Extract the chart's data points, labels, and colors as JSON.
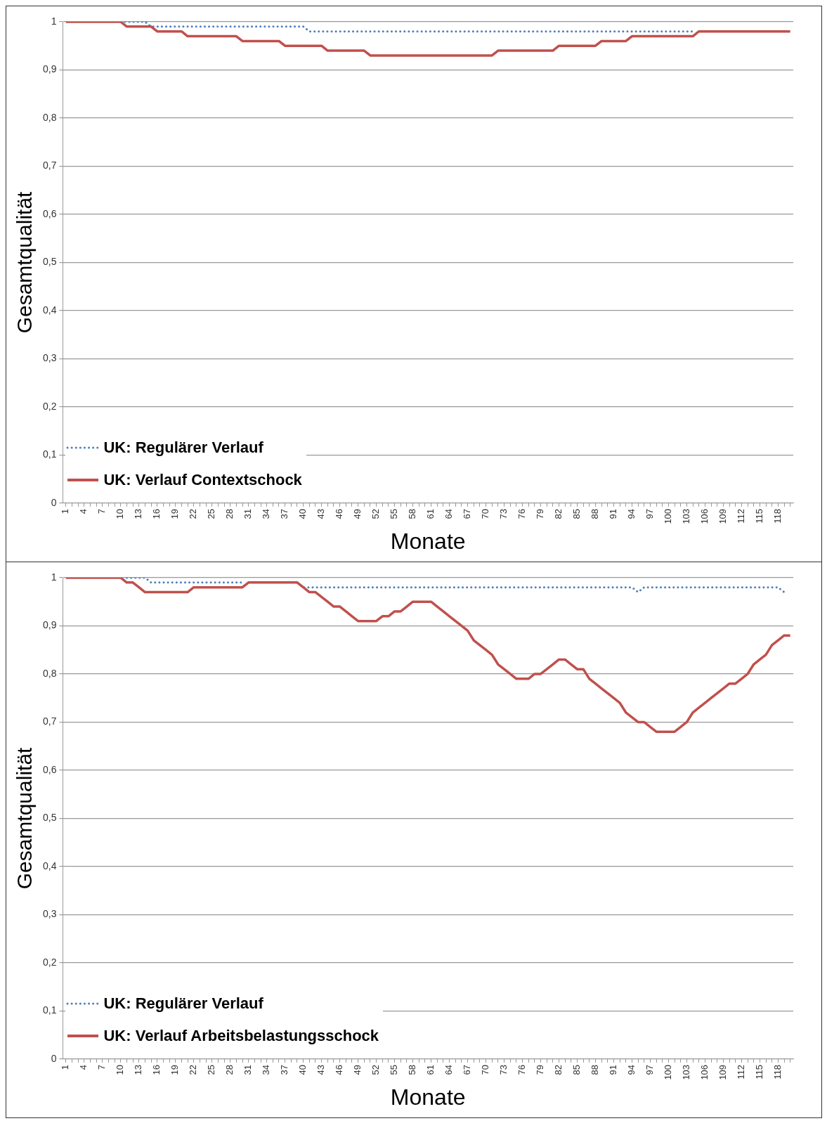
{
  "chart_data": [
    {
      "type": "line",
      "xlabel": "Monate",
      "ylabel": "Gesamtqualität",
      "legend": "bottom left",
      "grid": "y",
      "marker": "none",
      "categories": [
        "1",
        null,
        null,
        "4",
        null,
        null,
        "7",
        null,
        null,
        "10",
        null,
        null,
        "13",
        null,
        null,
        "16",
        null,
        null,
        "19",
        null,
        null,
        "22",
        null,
        null,
        "25",
        null,
        null,
        "28",
        null,
        null,
        "31",
        null,
        null,
        "34",
        null,
        null,
        "37",
        null,
        null,
        "40",
        null,
        null,
        "43",
        null,
        null,
        "46",
        null,
        null,
        "49",
        null,
        null,
        "52",
        null,
        null,
        "55",
        null,
        null,
        "58",
        null,
        null,
        "61",
        null,
        null,
        "64",
        null,
        null,
        "67",
        null,
        null,
        "70",
        null,
        null,
        "73",
        null,
        null,
        "76",
        null,
        null,
        "79",
        null,
        null,
        "82",
        null,
        null,
        "85",
        null,
        null,
        "88",
        null,
        null,
        "91",
        null,
        null,
        "94",
        null,
        null,
        "97",
        null,
        null,
        "100",
        null,
        null,
        "103",
        null,
        null,
        "106",
        null,
        null,
        "109",
        null,
        null,
        "112",
        null,
        null,
        "115",
        null,
        null,
        "118",
        null,
        null
      ],
      "ylim": [
        0,
        1
      ],
      "yticks": [
        {
          "value": 0,
          "label": "0"
        },
        {
          "value": 0.1,
          "label": "0,1"
        },
        {
          "value": 0.2,
          "label": "0,2"
        },
        {
          "value": 0.3,
          "label": "0,3"
        },
        {
          "value": 0.4,
          "label": "0,4"
        },
        {
          "value": 0.5,
          "label": "0,5"
        },
        {
          "value": 0.6,
          "label": "0,6"
        },
        {
          "value": 0.7,
          "label": "0,7"
        },
        {
          "value": 0.8,
          "label": "0,8"
        },
        {
          "value": 0.9,
          "label": "0,9"
        },
        {
          "value": 1,
          "label": "1"
        }
      ],
      "series": [
        {
          "name": "UK: Regulärer Verlauf",
          "color": "#4f81bd",
          "line_style": "dotted",
          "values": [
            null,
            null,
            null,
            null,
            null,
            null,
            null,
            null,
            null,
            1,
            1,
            1,
            1,
            1,
            0.99,
            0.99,
            0.99,
            0.99,
            0.99,
            0.99,
            0.99,
            0.99,
            0.99,
            0.99,
            0.99,
            0.99,
            0.99,
            0.99,
            0.99,
            0.99,
            0.99,
            0.99,
            0.99,
            0.99,
            0.99,
            0.99,
            0.99,
            0.99,
            0.99,
            0.99,
            0.98,
            0.98,
            0.98,
            0.98,
            0.98,
            0.98,
            0.98,
            0.98,
            0.98,
            0.98,
            0.98,
            0.98,
            0.98,
            0.98,
            0.98,
            0.98,
            0.98,
            0.98,
            0.98,
            0.98,
            0.98,
            0.98,
            0.98,
            0.98,
            0.98,
            0.98,
            0.98,
            0.98,
            0.98,
            0.98,
            0.98,
            0.98,
            0.98,
            0.98,
            0.98,
            0.98,
            0.98,
            0.98,
            0.98,
            0.98,
            0.98,
            0.98,
            0.98,
            0.98,
            0.98,
            0.98,
            0.98,
            0.98,
            0.98,
            0.98,
            0.98,
            0.98,
            0.98,
            0.98,
            0.98,
            0.98,
            0.98,
            0.98,
            0.98,
            0.98,
            0.98,
            0.98,
            0.98,
            0.98,
            null,
            null,
            null,
            null,
            null,
            null,
            null,
            null,
            null,
            null,
            null,
            null,
            null,
            null,
            null,
            null
          ]
        },
        {
          "name": "UK: Verlauf Contextschock",
          "color": "#c0504d",
          "line_style": "solid",
          "values": [
            1,
            1,
            1,
            1,
            1,
            1,
            1,
            1,
            1,
            1,
            0.99,
            0.99,
            0.99,
            0.99,
            0.99,
            0.98,
            0.98,
            0.98,
            0.98,
            0.98,
            0.97,
            0.97,
            0.97,
            0.97,
            0.97,
            0.97,
            0.97,
            0.97,
            0.97,
            0.96,
            0.96,
            0.96,
            0.96,
            0.96,
            0.96,
            0.96,
            0.95,
            0.95,
            0.95,
            0.95,
            0.95,
            0.95,
            0.95,
            0.94,
            0.94,
            0.94,
            0.94,
            0.94,
            0.94,
            0.94,
            0.93,
            0.93,
            0.93,
            0.93,
            0.93,
            0.93,
            0.93,
            0.93,
            0.93,
            0.93,
            0.93,
            0.93,
            0.93,
            0.93,
            0.93,
            0.93,
            0.93,
            0.93,
            0.93,
            0.93,
            0.93,
            0.94,
            0.94,
            0.94,
            0.94,
            0.94,
            0.94,
            0.94,
            0.94,
            0.94,
            0.94,
            0.95,
            0.95,
            0.95,
            0.95,
            0.95,
            0.95,
            0.95,
            0.96,
            0.96,
            0.96,
            0.96,
            0.96,
            0.97,
            0.97,
            0.97,
            0.97,
            0.97,
            0.97,
            0.97,
            0.97,
            0.97,
            0.97,
            0.97,
            0.98,
            0.98,
            0.98,
            0.98,
            0.98,
            0.98,
            0.98,
            0.98,
            0.98,
            0.98,
            0.98,
            0.98,
            0.98,
            0.98,
            0.98,
            0.98
          ]
        }
      ]
    },
    {
      "type": "line",
      "xlabel": "Monate",
      "ylabel": "Gesamtqualität",
      "legend": "bottom left",
      "grid": "y",
      "marker": "none",
      "categories": [
        "1",
        null,
        null,
        "4",
        null,
        null,
        "7",
        null,
        null,
        "10",
        null,
        null,
        "13",
        null,
        null,
        "16",
        null,
        null,
        "19",
        null,
        null,
        "22",
        null,
        null,
        "25",
        null,
        null,
        "28",
        null,
        null,
        "31",
        null,
        null,
        "34",
        null,
        null,
        "37",
        null,
        null,
        "40",
        null,
        null,
        "43",
        null,
        null,
        "46",
        null,
        null,
        "49",
        null,
        null,
        "52",
        null,
        null,
        "55",
        null,
        null,
        "58",
        null,
        null,
        "61",
        null,
        null,
        "64",
        null,
        null,
        "67",
        null,
        null,
        "70",
        null,
        null,
        "73",
        null,
        null,
        "76",
        null,
        null,
        "79",
        null,
        null,
        "82",
        null,
        null,
        "85",
        null,
        null,
        "88",
        null,
        null,
        "91",
        null,
        null,
        "94",
        null,
        null,
        "97",
        null,
        null,
        "100",
        null,
        null,
        "103",
        null,
        null,
        "106",
        null,
        null,
        "109",
        null,
        null,
        "112",
        null,
        null,
        "115",
        null,
        null,
        "118",
        null,
        null
      ],
      "ylim": [
        0,
        1
      ],
      "yticks": [
        {
          "value": 0,
          "label": "0"
        },
        {
          "value": 0.1,
          "label": "0,1"
        },
        {
          "value": 0.2,
          "label": "0,2"
        },
        {
          "value": 0.3,
          "label": "0,3"
        },
        {
          "value": 0.4,
          "label": "0,4"
        },
        {
          "value": 0.5,
          "label": "0,5"
        },
        {
          "value": 0.6,
          "label": "0,6"
        },
        {
          "value": 0.7,
          "label": "0,7"
        },
        {
          "value": 0.8,
          "label": "0,8"
        },
        {
          "value": 0.9,
          "label": "0,9"
        },
        {
          "value": 1,
          "label": "1"
        }
      ],
      "series": [
        {
          "name": "UK: Regulärer Verlauf",
          "color": "#4f81bd",
          "line_style": "dotted",
          "values": [
            null,
            null,
            null,
            null,
            null,
            null,
            null,
            null,
            null,
            null,
            1,
            1,
            1,
            1,
            0.99,
            0.99,
            0.99,
            0.99,
            0.99,
            0.99,
            0.99,
            0.99,
            0.99,
            0.99,
            0.99,
            0.99,
            0.99,
            0.99,
            0.99,
            0.99,
            null,
            null,
            null,
            null,
            null,
            null,
            null,
            null,
            0.99,
            0.98,
            0.98,
            0.98,
            0.98,
            0.98,
            0.98,
            0.98,
            0.98,
            0.98,
            0.98,
            0.98,
            0.98,
            0.98,
            0.98,
            0.98,
            0.98,
            0.98,
            0.98,
            0.98,
            0.98,
            0.98,
            0.98,
            0.98,
            0.98,
            0.98,
            0.98,
            0.98,
            0.98,
            0.98,
            0.98,
            0.98,
            0.98,
            0.98,
            0.98,
            0.98,
            0.98,
            0.98,
            0.98,
            0.98,
            0.98,
            0.98,
            0.98,
            0.98,
            0.98,
            0.98,
            0.98,
            0.98,
            0.98,
            0.98,
            0.98,
            0.98,
            0.98,
            0.98,
            0.98,
            0.98,
            0.97,
            0.98,
            0.98,
            0.98,
            0.98,
            0.98,
            0.98,
            0.98,
            0.98,
            0.98,
            0.98,
            0.98,
            0.98,
            0.98,
            0.98,
            0.98,
            0.98,
            0.98,
            0.98,
            0.98,
            0.98,
            0.98,
            0.98,
            0.98,
            0.97,
            null
          ]
        },
        {
          "name": "UK: Verlauf Arbeitsbelastungsschock",
          "color": "#c0504d",
          "line_style": "solid",
          "values": [
            1,
            1,
            1,
            1,
            1,
            1,
            1,
            1,
            1,
            1,
            0.99,
            0.99,
            0.98,
            0.97,
            0.97,
            0.97,
            0.97,
            0.97,
            0.97,
            0.97,
            0.97,
            0.98,
            0.98,
            0.98,
            0.98,
            0.98,
            0.98,
            0.98,
            0.98,
            0.98,
            0.99,
            0.99,
            0.99,
            0.99,
            0.99,
            0.99,
            0.99,
            0.99,
            0.99,
            0.98,
            0.97,
            0.97,
            0.96,
            0.95,
            0.94,
            0.94,
            0.93,
            0.92,
            0.91,
            0.91,
            0.91,
            0.91,
            0.92,
            0.92,
            0.93,
            0.93,
            0.94,
            0.95,
            0.95,
            0.95,
            0.95,
            0.94,
            0.93,
            0.92,
            0.91,
            0.9,
            0.89,
            0.87,
            0.86,
            0.85,
            0.84,
            0.82,
            0.81,
            0.8,
            0.79,
            0.79,
            0.79,
            0.8,
            0.8,
            0.81,
            0.82,
            0.83,
            0.83,
            0.82,
            0.81,
            0.81,
            0.79,
            0.78,
            0.77,
            0.76,
            0.75,
            0.74,
            0.72,
            0.71,
            0.7,
            0.7,
            0.69,
            0.68,
            0.68,
            0.68,
            0.68,
            0.69,
            0.7,
            0.72,
            0.73,
            0.74,
            0.75,
            0.76,
            0.77,
            0.78,
            0.78,
            0.79,
            0.8,
            0.82,
            0.83,
            0.84,
            0.86,
            0.87,
            0.88,
            0.88
          ]
        }
      ]
    }
  ]
}
